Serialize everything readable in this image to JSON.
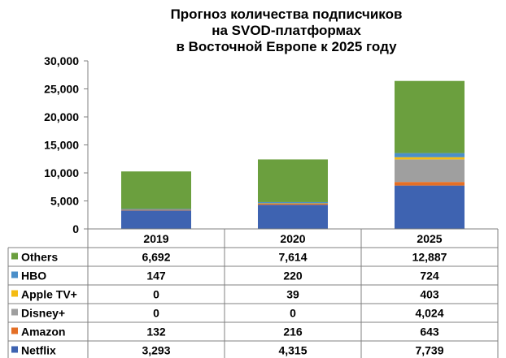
{
  "chart_data": {
    "type": "bar",
    "stacked": true,
    "title": [
      "Прогноз количества подписчиков",
      "на SVOD-платформах",
      "в Восточной Европе к 2025 году"
    ],
    "categories": [
      "2019",
      "2020",
      "2025"
    ],
    "ylim": [
      0,
      30000
    ],
    "yticks": [
      "0",
      "5,000",
      "10,000",
      "15,000",
      "20,000",
      "25,000",
      "30,000"
    ],
    "grid": false,
    "legend_placement": "data table",
    "series": [
      {
        "name": "Netflix",
        "color": "#3e63b1",
        "values": [
          3293,
          4315,
          7739
        ],
        "labels": [
          "3,293",
          "4,315",
          "7,739"
        ]
      },
      {
        "name": "Amazon",
        "color": "#e46f26",
        "values": [
          132,
          216,
          643
        ],
        "labels": [
          "132",
          "216",
          "643"
        ]
      },
      {
        "name": "Disney+",
        "color": "#9f9f9f",
        "values": [
          0,
          0,
          4024
        ],
        "labels": [
          "0",
          "0",
          "4,024"
        ]
      },
      {
        "name": "Apple TV+",
        "color": "#f4bb13",
        "values": [
          0,
          39,
          403
        ],
        "labels": [
          "0",
          "39",
          "403"
        ]
      },
      {
        "name": "HBO",
        "color": "#4b8fc9",
        "values": [
          147,
          220,
          724
        ],
        "labels": [
          "147",
          "220",
          "724"
        ]
      },
      {
        "name": "Others",
        "color": "#6b9f3e",
        "values": [
          6692,
          7614,
          12887
        ],
        "labels": [
          "6,692",
          "7,614",
          "12,887"
        ]
      }
    ],
    "table_row_order": [
      "Others",
      "HBO",
      "Apple TV+",
      "Disney+",
      "Amazon",
      "Netflix"
    ]
  }
}
